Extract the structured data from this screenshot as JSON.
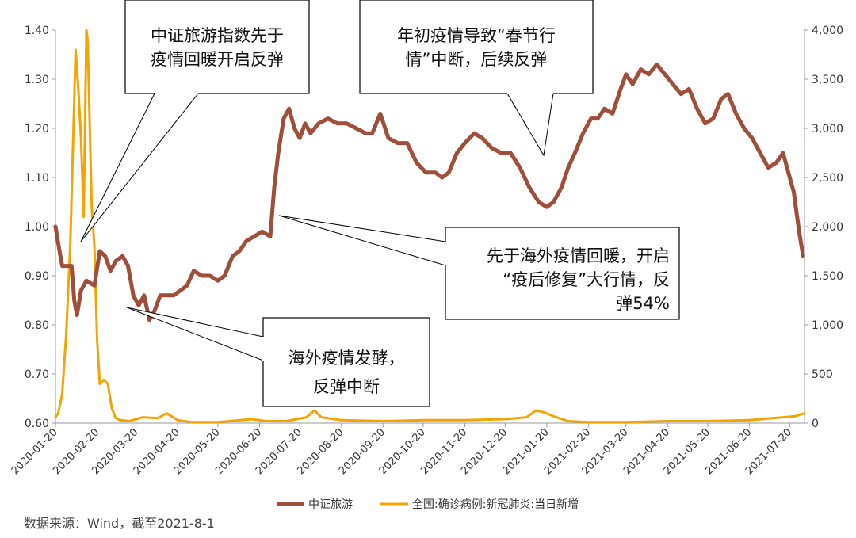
{
  "chart_data": {
    "type": "line",
    "title": "",
    "left_axis": {
      "min": 0.6,
      "max": 1.4,
      "ticks": [
        "0.60",
        "0.70",
        "0.80",
        "0.90",
        "1.00",
        "1.10",
        "1.20",
        "1.30",
        "1.40"
      ]
    },
    "right_axis": {
      "min": 0,
      "max": 4000,
      "ticks": [
        "0",
        "500",
        "1,000",
        "1,500",
        "2,000",
        "2,500",
        "3,000",
        "3,500",
        "4,000"
      ]
    },
    "x_ticks": [
      "2020-01-20",
      "2020-02-20",
      "2020-03-20",
      "2020-04-20",
      "2020-05-20",
      "2020-06-20",
      "2020-07-20",
      "2020-08-20",
      "2020-09-20",
      "2020-10-20",
      "2020-11-20",
      "2020-12-20",
      "2021-01-20",
      "2021-02-20",
      "2021-03-20",
      "2021-04-20",
      "2021-05-20",
      "2021-06-20",
      "2021-07-20"
    ],
    "legend_position": "bottom",
    "grid": false,
    "series": [
      {
        "name": "中证旅游",
        "axis": "left",
        "color": "#9e4e3b",
        "points": [
          [
            "2020-01-20",
            1.0
          ],
          [
            "2020-01-23",
            0.95
          ],
          [
            "2020-01-25",
            0.92
          ],
          [
            "2020-02-01",
            0.92
          ],
          [
            "2020-02-03",
            0.85
          ],
          [
            "2020-02-05",
            0.82
          ],
          [
            "2020-02-08",
            0.87
          ],
          [
            "2020-02-12",
            0.89
          ],
          [
            "2020-02-18",
            0.88
          ],
          [
            "2020-02-22",
            0.95
          ],
          [
            "2020-02-26",
            0.94
          ],
          [
            "2020-03-01",
            0.91
          ],
          [
            "2020-03-05",
            0.93
          ],
          [
            "2020-03-10",
            0.94
          ],
          [
            "2020-03-14",
            0.92
          ],
          [
            "2020-03-18",
            0.86
          ],
          [
            "2020-03-22",
            0.84
          ],
          [
            "2020-03-26",
            0.86
          ],
          [
            "2020-03-30",
            0.81
          ],
          [
            "2020-04-03",
            0.83
          ],
          [
            "2020-04-07",
            0.86
          ],
          [
            "2020-04-12",
            0.86
          ],
          [
            "2020-04-17",
            0.86
          ],
          [
            "2020-04-22",
            0.87
          ],
          [
            "2020-04-27",
            0.88
          ],
          [
            "2020-05-02",
            0.91
          ],
          [
            "2020-05-08",
            0.9
          ],
          [
            "2020-05-14",
            0.9
          ],
          [
            "2020-05-20",
            0.89
          ],
          [
            "2020-05-25",
            0.9
          ],
          [
            "2020-05-31",
            0.94
          ],
          [
            "2020-06-05",
            0.95
          ],
          [
            "2020-06-10",
            0.97
          ],
          [
            "2020-06-16",
            0.98
          ],
          [
            "2020-06-22",
            0.99
          ],
          [
            "2020-06-28",
            0.98
          ],
          [
            "2020-07-01",
            1.08
          ],
          [
            "2020-07-04",
            1.15
          ],
          [
            "2020-07-08",
            1.22
          ],
          [
            "2020-07-12",
            1.24
          ],
          [
            "2020-07-16",
            1.2
          ],
          [
            "2020-07-20",
            1.18
          ],
          [
            "2020-07-24",
            1.21
          ],
          [
            "2020-07-28",
            1.19
          ],
          [
            "2020-08-03",
            1.21
          ],
          [
            "2020-08-10",
            1.22
          ],
          [
            "2020-08-17",
            1.21
          ],
          [
            "2020-08-24",
            1.21
          ],
          [
            "2020-08-31",
            1.2
          ],
          [
            "2020-09-07",
            1.19
          ],
          [
            "2020-09-12",
            1.19
          ],
          [
            "2020-09-18",
            1.23
          ],
          [
            "2020-09-24",
            1.18
          ],
          [
            "2020-10-01",
            1.17
          ],
          [
            "2020-10-08",
            1.17
          ],
          [
            "2020-10-15",
            1.13
          ],
          [
            "2020-10-22",
            1.11
          ],
          [
            "2020-10-29",
            1.11
          ],
          [
            "2020-11-03",
            1.1
          ],
          [
            "2020-11-08",
            1.11
          ],
          [
            "2020-11-14",
            1.15
          ],
          [
            "2020-11-20",
            1.17
          ],
          [
            "2020-11-27",
            1.19
          ],
          [
            "2020-12-03",
            1.18
          ],
          [
            "2020-12-10",
            1.16
          ],
          [
            "2020-12-17",
            1.15
          ],
          [
            "2020-12-24",
            1.15
          ],
          [
            "2020-12-31",
            1.12
          ],
          [
            "2021-01-07",
            1.08
          ],
          [
            "2021-01-14",
            1.05
          ],
          [
            "2021-01-20",
            1.04
          ],
          [
            "2021-01-25",
            1.05
          ],
          [
            "2021-01-31",
            1.08
          ],
          [
            "2021-02-05",
            1.12
          ],
          [
            "2021-02-10",
            1.15
          ],
          [
            "2021-02-16",
            1.19
          ],
          [
            "2021-02-22",
            1.22
          ],
          [
            "2021-02-27",
            1.22
          ],
          [
            "2021-03-04",
            1.24
          ],
          [
            "2021-03-10",
            1.23
          ],
          [
            "2021-03-16",
            1.28
          ],
          [
            "2021-03-20",
            1.31
          ],
          [
            "2021-03-25",
            1.29
          ],
          [
            "2021-03-31",
            1.32
          ],
          [
            "2021-04-06",
            1.31
          ],
          [
            "2021-04-12",
            1.33
          ],
          [
            "2021-04-18",
            1.31
          ],
          [
            "2021-04-24",
            1.29
          ],
          [
            "2021-04-30",
            1.27
          ],
          [
            "2021-05-06",
            1.28
          ],
          [
            "2021-05-12",
            1.24
          ],
          [
            "2021-05-18",
            1.21
          ],
          [
            "2021-05-24",
            1.22
          ],
          [
            "2021-05-30",
            1.26
          ],
          [
            "2021-06-04",
            1.27
          ],
          [
            "2021-06-10",
            1.23
          ],
          [
            "2021-06-16",
            1.2
          ],
          [
            "2021-06-22",
            1.18
          ],
          [
            "2021-06-28",
            1.15
          ],
          [
            "2021-07-04",
            1.12
          ],
          [
            "2021-07-10",
            1.13
          ],
          [
            "2021-07-15",
            1.15
          ],
          [
            "2021-07-19",
            1.11
          ],
          [
            "2021-07-23",
            1.07
          ],
          [
            "2021-07-27",
            0.99
          ],
          [
            "2021-07-30",
            0.94
          ]
        ]
      },
      {
        "name": "全国:确诊病例:新冠肺炎:当日新增",
        "axis": "right",
        "color": "#f4a300",
        "points": [
          [
            "2020-01-20",
            60
          ],
          [
            "2020-01-22",
            100
          ],
          [
            "2020-01-25",
            300
          ],
          [
            "2020-01-28",
            900
          ],
          [
            "2020-01-31",
            1800
          ],
          [
            "2020-02-02",
            2800
          ],
          [
            "2020-02-04",
            3800
          ],
          [
            "2020-02-06",
            3400
          ],
          [
            "2020-02-08",
            2900
          ],
          [
            "2020-02-10",
            2100
          ],
          [
            "2020-02-12",
            4000
          ],
          [
            "2020-02-13",
            3900
          ],
          [
            "2020-02-16",
            2200
          ],
          [
            "2020-02-18",
            1800
          ],
          [
            "2020-02-20",
            850
          ],
          [
            "2020-02-22",
            400
          ],
          [
            "2020-02-25",
            440
          ],
          [
            "2020-02-28",
            400
          ],
          [
            "2020-03-02",
            150
          ],
          [
            "2020-03-05",
            50
          ],
          [
            "2020-03-08",
            30
          ],
          [
            "2020-03-15",
            20
          ],
          [
            "2020-03-25",
            60
          ],
          [
            "2020-04-05",
            50
          ],
          [
            "2020-04-12",
            100
          ],
          [
            "2020-04-20",
            30
          ],
          [
            "2020-05-01",
            10
          ],
          [
            "2020-05-20",
            10
          ],
          [
            "2020-06-14",
            40
          ],
          [
            "2020-06-25",
            20
          ],
          [
            "2020-07-10",
            20
          ],
          [
            "2020-07-25",
            60
          ],
          [
            "2020-07-31",
            130
          ],
          [
            "2020-08-05",
            60
          ],
          [
            "2020-08-20",
            30
          ],
          [
            "2020-09-20",
            20
          ],
          [
            "2020-10-20",
            30
          ],
          [
            "2020-11-20",
            30
          ],
          [
            "2020-12-20",
            40
          ],
          [
            "2021-01-05",
            60
          ],
          [
            "2021-01-12",
            130
          ],
          [
            "2021-01-18",
            110
          ],
          [
            "2021-01-25",
            70
          ],
          [
            "2021-02-05",
            20
          ],
          [
            "2021-02-20",
            10
          ],
          [
            "2021-03-20",
            10
          ],
          [
            "2021-04-20",
            20
          ],
          [
            "2021-05-20",
            20
          ],
          [
            "2021-06-20",
            30
          ],
          [
            "2021-07-15",
            60
          ],
          [
            "2021-07-24",
            70
          ],
          [
            "2021-07-31",
            100
          ]
        ]
      }
    ],
    "annotations": [
      {
        "lines": [
          "中证旅游指数先于",
          "疫情回暖开启反弹"
        ]
      },
      {
        "lines": [
          "年初疫情导致“春节行",
          "情”中断，后续反弹"
        ]
      },
      {
        "lines": [
          "先于海外疫情回暖，开启",
          "“疫后修复”大行情，反",
          "弹54%"
        ]
      },
      {
        "lines": [
          "海外疫情发酵，",
          "反弹中断"
        ]
      }
    ]
  },
  "source_note": "数据来源：Wind，截至2021-8-1"
}
